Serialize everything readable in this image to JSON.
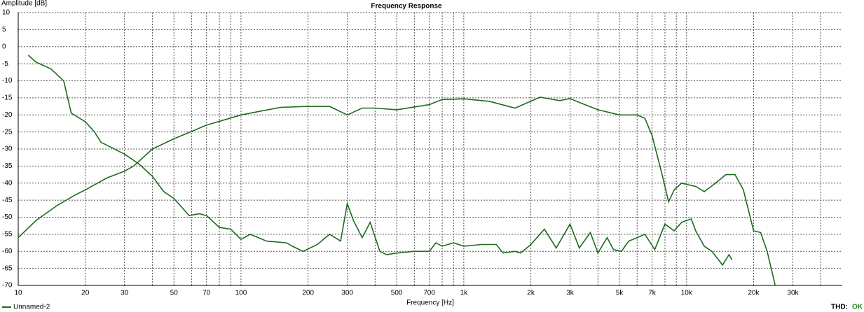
{
  "chart_data": {
    "type": "line",
    "title": "Frequency Response",
    "y_label": "Amplitude [dB]",
    "x_label": "Frequency [Hz]",
    "x_scale": "log",
    "grid": true,
    "xlim": [
      10,
      50000
    ],
    "ylim": [
      -70,
      10
    ],
    "yticks": [
      10,
      5,
      0,
      -5,
      -10,
      -15,
      -20,
      -25,
      -30,
      -35,
      -40,
      -45,
      -50,
      -55,
      -60,
      -65,
      -70
    ],
    "xticks": [
      10,
      20,
      30,
      50,
      70,
      100,
      200,
      300,
      500,
      700,
      {
        "value": 1000,
        "label": "1k"
      },
      {
        "value": 2000,
        "label": "2k"
      },
      {
        "value": 3000,
        "label": "3k"
      },
      {
        "value": 5000,
        "label": "5k"
      },
      {
        "value": 7000,
        "label": "7k"
      },
      {
        "value": 10000,
        "label": "10k"
      },
      {
        "value": 20000,
        "label": "20k"
      },
      {
        "value": 30000,
        "label": "30k"
      }
    ],
    "x_minor_ticks": [
      40,
      60,
      80,
      90,
      400,
      600,
      800,
      900,
      4000,
      6000,
      8000,
      9000,
      40000
    ],
    "legend": "bottom-left",
    "status_label": "THD:",
    "status": "OK",
    "series": [
      {
        "name": "Unnamed-2",
        "color": "#1e6b1e",
        "x": [
          10,
          12,
          15,
          18,
          20,
          25,
          30,
          33,
          40,
          50,
          70,
          100,
          150,
          200,
          250,
          300,
          350,
          400,
          500,
          700,
          800,
          1000,
          1300,
          1700,
          2200,
          2700,
          3000,
          3500,
          4000,
          5000,
          6000,
          6500,
          7000,
          7800,
          8300,
          8800,
          9500,
          11000,
          12000,
          13500,
          15000,
          16500,
          18000,
          20000,
          21500,
          23000,
          25000
        ],
        "values": [
          -56,
          -51,
          -46.5,
          -43.5,
          -42,
          -38.5,
          -36.5,
          -35,
          -30,
          -27,
          -23,
          -20,
          -17.8,
          -17.5,
          -17.5,
          -20,
          -18,
          -18,
          -18.5,
          -17,
          -15.5,
          -15.3,
          -16,
          -18,
          -14.8,
          -15.8,
          -15.2,
          -17,
          -18.5,
          -20,
          -20,
          -21,
          -26,
          -38,
          -45.5,
          -42,
          -40,
          -41,
          -42.5,
          -40,
          -37.5,
          -37.5,
          -42,
          -54,
          -54.5,
          -60,
          -70
        ]
      },
      {
        "color": "#1e6b1e",
        "x": [
          11.1,
          12,
          14,
          16,
          17.3,
          20,
          22,
          23.5,
          30,
          35,
          40,
          45,
          50,
          58.5,
          65,
          70,
          80,
          90,
          100,
          110,
          130,
          160,
          170,
          190,
          220,
          250,
          280,
          300,
          320,
          350,
          380,
          420,
          450,
          500,
          600,
          700,
          750,
          800,
          900,
          1000,
          1200,
          1400,
          1500,
          1700,
          1800,
          2000,
          2300,
          2600,
          3000,
          3300,
          3700,
          4000,
          4400,
          4700,
          5100,
          5500,
          6000,
          6500,
          7200,
          8000,
          8800,
          9500,
          10500,
          11000,
          12000,
          13000,
          14500,
          15500,
          16000
        ],
        "values": [
          -2.5,
          -4.5,
          -6.5,
          -10,
          -19.5,
          -22,
          -25,
          -28,
          -31.5,
          -34.5,
          -38,
          -42.5,
          -44.5,
          -49.5,
          -49,
          -49.5,
          -53,
          -53.5,
          -56.5,
          -55,
          -57,
          -57.5,
          -58.5,
          -60,
          -58,
          -55,
          -57,
          -46,
          -51,
          -56,
          -51.5,
          -60,
          -61,
          -60.5,
          -60,
          -60,
          -57.5,
          -58.5,
          -57.5,
          -58.5,
          -58,
          -58,
          -60.5,
          -60,
          -60.5,
          -58,
          -53.5,
          -59,
          -52,
          -59,
          -54.5,
          -60.5,
          -56,
          -59.5,
          -60,
          -57,
          -56,
          -55,
          -59.5,
          -52,
          -54,
          -51.5,
          -50.5,
          -54,
          -58.5,
          -60,
          -64,
          -61,
          -62.5
        ]
      }
    ]
  }
}
